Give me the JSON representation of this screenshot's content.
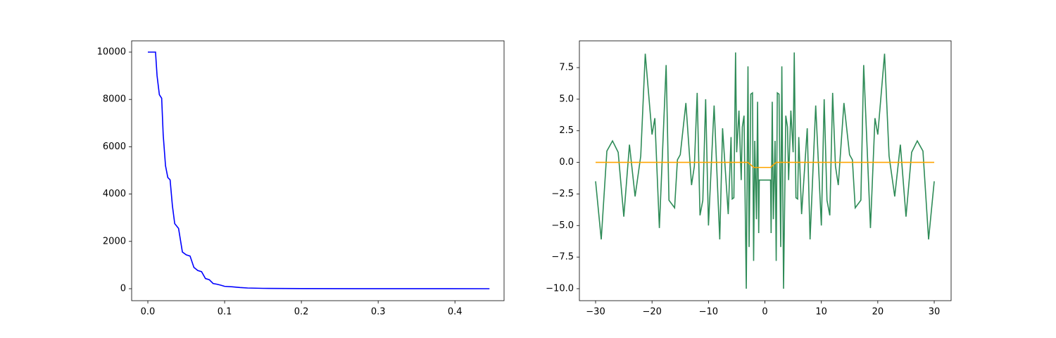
{
  "chart_data": [
    {
      "type": "line",
      "x": [
        0,
        0.01,
        0.012,
        0.015,
        0.018,
        0.02,
        0.023,
        0.026,
        0.029,
        0.032,
        0.035,
        0.04,
        0.045,
        0.05,
        0.055,
        0.06,
        0.065,
        0.07,
        0.075,
        0.08,
        0.085,
        0.09,
        0.095,
        0.1,
        0.11,
        0.12,
        0.13,
        0.15,
        0.2,
        0.3,
        0.445
      ],
      "series": [
        {
          "color": "#0000ff",
          "values": [
            10000,
            10000,
            9000,
            8200,
            8050,
            6500,
            5200,
            4700,
            4600,
            3500,
            2750,
            2550,
            1550,
            1430,
            1380,
            900,
            770,
            720,
            430,
            380,
            220,
            190,
            150,
            100,
            80,
            50,
            30,
            15,
            5,
            1,
            0
          ]
        }
      ],
      "xlim": [
        -0.0211,
        0.464
      ],
      "ylim": [
        -506,
        10476
      ],
      "xticks": [
        {
          "value": 0,
          "label": "0.0"
        },
        0.1,
        0.2,
        0.3,
        0.4
      ],
      "yticks": [
        0,
        2000,
        4000,
        6000,
        8000,
        10000
      ]
    },
    {
      "type": "line",
      "series": [
        {
          "color": "#2e8b57",
          "x": [
            -30,
            -29,
            -28,
            -27,
            -26,
            -25,
            -24,
            -23,
            -22,
            -21.2,
            -20,
            -19.5,
            -18.7,
            -17.5,
            -17,
            -16,
            -15.5,
            -15,
            -14,
            -13,
            -12.5,
            -12,
            -11.5,
            -11,
            -10.5,
            -10,
            -9,
            -8,
            -7.5,
            -6.5,
            -6,
            -5.8,
            -5.5,
            -5.2,
            -5,
            -4.6,
            -4.2,
            -4,
            -3.7,
            -3.3,
            -3,
            -2.8,
            -2.5,
            -2.2,
            -2,
            -1.8,
            -1.5,
            -1.3,
            -1.1,
            -1,
            1,
            1.1,
            1.3,
            1.5,
            1.8,
            2,
            2.2,
            2.5,
            2.8,
            3,
            3.3,
            3.7,
            4,
            4.2,
            4.6,
            5,
            5.2,
            5.5,
            5.8,
            6,
            6.5,
            7.5,
            8,
            9,
            10,
            10.5,
            11,
            11.5,
            12,
            12.5,
            13,
            14,
            15,
            15.5,
            16,
            17,
            17.5,
            18.7,
            19.5,
            20,
            21.2,
            22,
            23,
            24,
            25,
            26,
            27,
            28,
            29,
            30
          ],
          "values": [
            -1.5,
            -6.1,
            0.9,
            1.7,
            0.8,
            -4.3,
            1.4,
            -2.7,
            0.5,
            8.6,
            2.2,
            3.5,
            -5.2,
            7.7,
            -3.0,
            -3.6,
            0.2,
            0.6,
            4.7,
            -1.8,
            -0.3,
            5.5,
            -4.2,
            -3.0,
            5.0,
            -5.0,
            4.5,
            -6.1,
            2.7,
            -4.1,
            2.0,
            -2.9,
            -2.8,
            8.7,
            0.8,
            4.1,
            -1.4,
            2.8,
            3.7,
            -10,
            7.6,
            -6.7,
            5.4,
            5.5,
            -7.8,
            1.7,
            -4.5,
            4.8,
            -5.6,
            -1.4,
            -1.4,
            -5.6,
            4.8,
            -4.5,
            1.7,
            -7.8,
            5.5,
            5.4,
            -6.7,
            7.6,
            -10,
            3.7,
            2.8,
            -1.4,
            4.1,
            0.8,
            8.7,
            -2.8,
            -2.9,
            2.0,
            -4.1,
            2.7,
            -6.1,
            4.5,
            -5.0,
            5.0,
            -3.0,
            -4.2,
            5.5,
            -0.3,
            -1.8,
            4.7,
            0.6,
            0.2,
            -3.6,
            -3.0,
            7.7,
            -5.2,
            3.5,
            2.2,
            8.6,
            0.5,
            -2.7,
            1.4,
            -4.3,
            0.8,
            1.7,
            0.9,
            -6.1,
            -1.5
          ]
        },
        {
          "color": "#ffa500",
          "x": [
            -30,
            -3,
            -2,
            1,
            2,
            30
          ],
          "values": [
            0,
            0,
            -0.4,
            -0.4,
            0,
            0
          ]
        }
      ],
      "xlim": [
        -32.87,
        32.99
      ],
      "ylim": [
        -10.95,
        9.62
      ],
      "xticks": [
        {
          "value": -30,
          "label": "−30"
        },
        {
          "value": -20,
          "label": "−20"
        },
        {
          "value": -10,
          "label": "−10"
        },
        0,
        10,
        20,
        30
      ],
      "yticks": [
        {
          "value": -10,
          "label": "−10.0"
        },
        {
          "value": -7.5,
          "label": "−7.5"
        },
        {
          "value": -5,
          "label": "−5.0"
        },
        {
          "value": -2.5,
          "label": "−2.5"
        },
        {
          "value": 0,
          "label": "0.0"
        },
        2.5,
        {
          "value": 5,
          "label": "5.0"
        },
        7.5
      ]
    }
  ]
}
